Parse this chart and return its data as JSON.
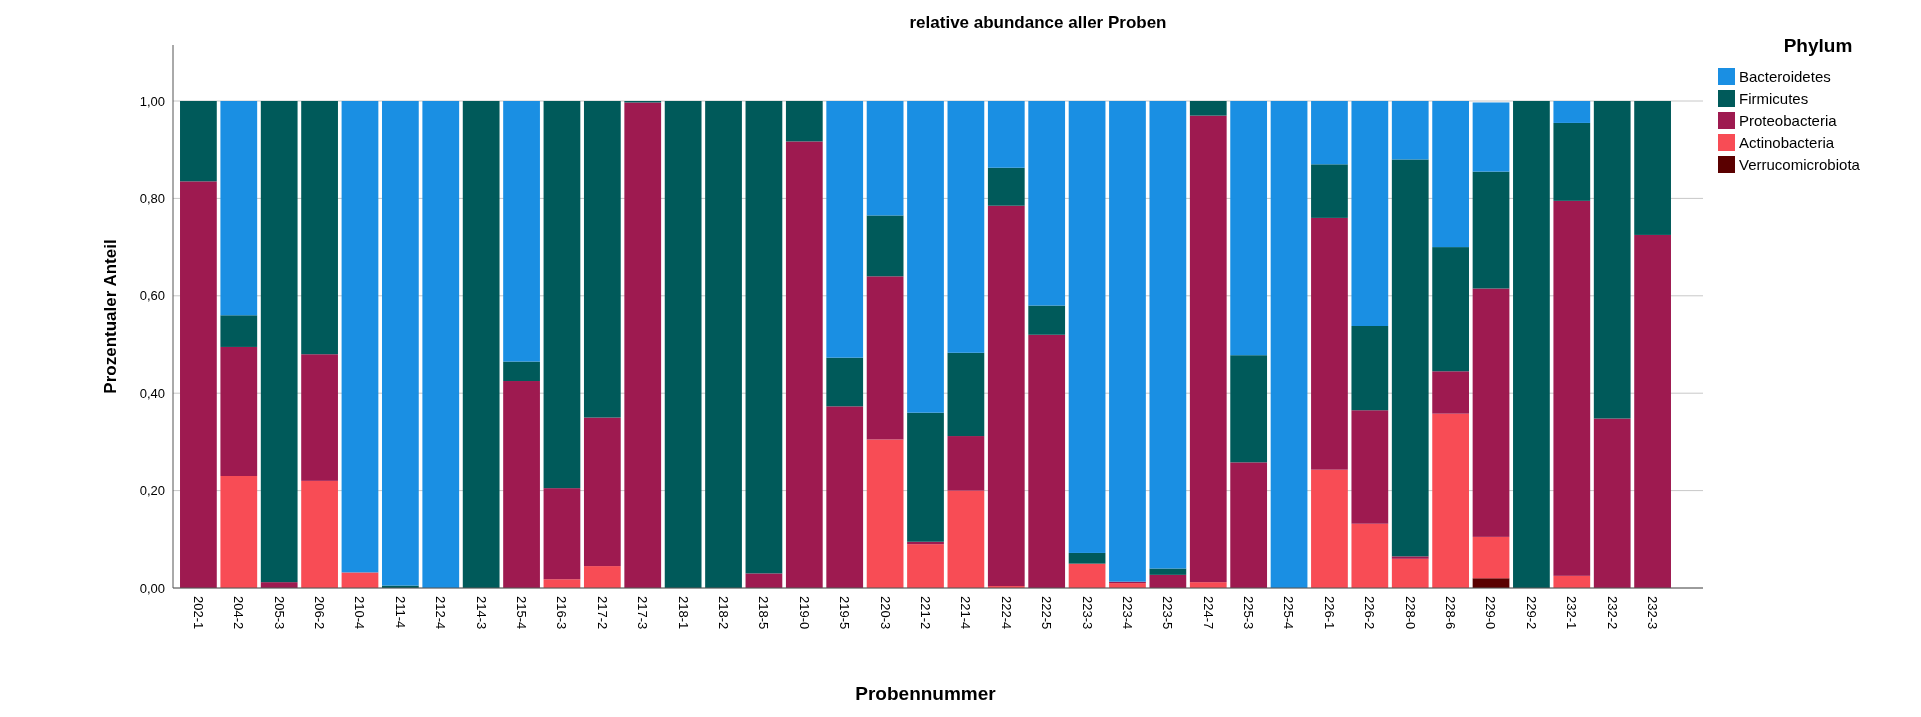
{
  "chart_data": {
    "type": "bar",
    "stacked": true,
    "title": "relative abundance aller Proben",
    "xlabel": "Probennummer",
    "ylabel": "Prozentualer Anteil",
    "legend_title": "Phylum",
    "legend": "top right",
    "grid": "y",
    "categories": [
      "202-1",
      "204-2",
      "205-3",
      "206-2",
      "210-4",
      "211-4",
      "212-4",
      "214-3",
      "215-4",
      "216-3",
      "217-2",
      "217-3",
      "218-1",
      "218-2",
      "218-5",
      "219-0",
      "219-5",
      "220-3",
      "221-2",
      "221-4",
      "222-4",
      "222-5",
      "223-3",
      "223-4",
      "223-5",
      "224-7",
      "225-3",
      "225-4",
      "226-1",
      "226-2",
      "228-0",
      "228-6",
      "229-0",
      "229-2",
      "232-1",
      "232-2",
      "232-3"
    ],
    "ylim": [
      0,
      1.115
    ],
    "yticks": [
      {
        "value": 0,
        "label": "0,00"
      },
      {
        "value": 0.2,
        "label": "0,20"
      },
      {
        "value": 0.4,
        "label": "0,40"
      },
      {
        "value": 0.6,
        "label": "0,60"
      },
      {
        "value": 0.8,
        "label": "0,80"
      },
      {
        "value": 1,
        "label": "1,00"
      }
    ],
    "series": [
      {
        "name": "Verrucomicrobiota",
        "color": "#5a0000",
        "values": [
          0,
          0,
          0,
          0,
          0,
          0,
          0,
          0,
          0,
          0,
          0,
          0,
          0,
          0,
          0,
          0,
          0,
          0,
          0,
          0,
          0,
          0,
          0,
          0,
          0,
          0,
          0,
          0,
          0,
          0,
          0,
          0,
          0.02,
          0,
          0,
          0,
          0
        ]
      },
      {
        "name": "Actinobacteria",
        "color": "#f84c55",
        "values": [
          0,
          0.23,
          0,
          0.22,
          0.032,
          0,
          0,
          0,
          0,
          0.018,
          0.045,
          0,
          0,
          0,
          0,
          0,
          0,
          0.305,
          0.09,
          0.2,
          0.004,
          0,
          0.05,
          0.01,
          0,
          0.012,
          0,
          0,
          0.243,
          0.132,
          0.06,
          0.358,
          0.085,
          0,
          0.025,
          0,
          0
        ]
      },
      {
        "name": "Proteobacteria",
        "color": "#9e1a50",
        "values": [
          0.835,
          0.265,
          0.012,
          0.26,
          0,
          0,
          0,
          0,
          0.425,
          0.187,
          0.305,
          0.997,
          0,
          0,
          0.03,
          0.917,
          0.373,
          0.335,
          0.005,
          0.112,
          0.781,
          0.52,
          0,
          0.003,
          0.027,
          0.958,
          0.258,
          0,
          0.517,
          0.233,
          0.005,
          0.087,
          0.51,
          0,
          0.77,
          0.348,
          0.725
        ]
      },
      {
        "name": "Firmicutes",
        "color": "#005a5a",
        "values": [
          0.165,
          0.065,
          0.988,
          0.52,
          0,
          0.005,
          0,
          1,
          0.04,
          0.795,
          0.65,
          0.003,
          1,
          1,
          0.97,
          0.083,
          0.1,
          0.125,
          0.265,
          0.171,
          0.078,
          0.06,
          0.022,
          0,
          0.013,
          0.03,
          0.22,
          0,
          0.11,
          0.173,
          0.815,
          0.255,
          0.24,
          1,
          0.16,
          0.652,
          0.275
        ]
      },
      {
        "name": "Bacteroidetes",
        "color": "#1a8fe3",
        "values": [
          0,
          0.44,
          0,
          0,
          0.968,
          0.995,
          1,
          0,
          0.535,
          0,
          0,
          0,
          0,
          0,
          0,
          0,
          0.527,
          0.235,
          0.64,
          0.517,
          0.137,
          0.42,
          0.928,
          0.987,
          0.96,
          0,
          0.522,
          1,
          0.13,
          0.462,
          0.12,
          0.3,
          0.142,
          0,
          0.045,
          0,
          0
        ]
      }
    ]
  }
}
